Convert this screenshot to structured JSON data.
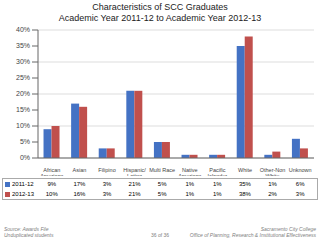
{
  "chart_data": {
    "type": "bar",
    "title": "Characteristics of SCC Graduates\nAcademic Year 2011-12 to Academic Year 2012-13",
    "categories": [
      "African\nAmerican",
      "Asian",
      "Filipino",
      "Hispanic/\nLatino",
      "Multi Race",
      "Native\nAmerican",
      "Pacific\nIslander",
      "White",
      "Other-Non\nWhite",
      "Unknown"
    ],
    "series": [
      {
        "name": "2011-12",
        "color": "#4472C4",
        "values": [
          9,
          17,
          3,
          21,
          5,
          1,
          1,
          35,
          1,
          6
        ],
        "value_labels": [
          "9%",
          "17%",
          "3%",
          "21%",
          "5%",
          "1%",
          "1%",
          "35%",
          "1%",
          "6%"
        ]
      },
      {
        "name": "2012-13",
        "color": "#C0504D",
        "values": [
          10,
          16,
          3,
          21,
          5,
          1,
          1,
          38,
          2,
          3
        ],
        "value_labels": [
          "10%",
          "16%",
          "3%",
          "21%",
          "5%",
          "1%",
          "1%",
          "38%",
          "2%",
          "3%"
        ]
      }
    ],
    "ylim": [
      0,
      40
    ],
    "yticks": [
      {
        "value": 0,
        "label": "0%"
      },
      {
        "value": 5,
        "label": "5%"
      },
      {
        "value": 10,
        "label": "10%"
      },
      {
        "value": 15,
        "label": "15%"
      },
      {
        "value": 20,
        "label": "20%"
      },
      {
        "value": 25,
        "label": "25%"
      },
      {
        "value": 30,
        "label": "30%"
      },
      {
        "value": 35,
        "label": "35%"
      },
      {
        "value": 40,
        "label": "40%"
      }
    ],
    "grid": true,
    "annotations": [
      "Source: Awards File\nUnduplicated students",
      "36 of 36",
      "Sacramento City College\nOffice of Planning, Research & Institutional Effectiveness"
    ]
  }
}
